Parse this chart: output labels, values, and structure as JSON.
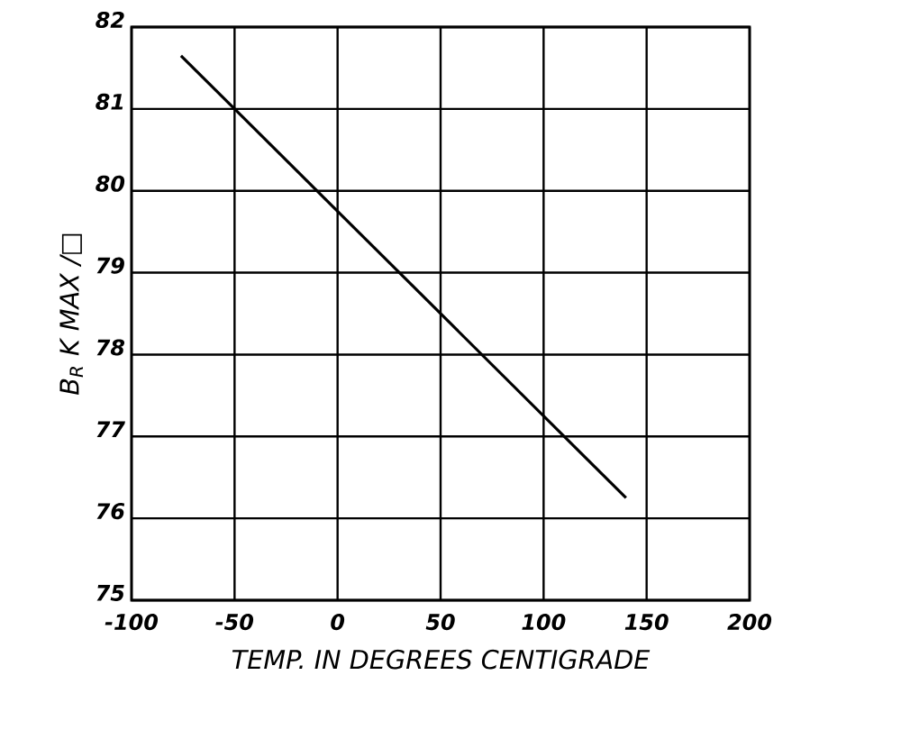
{
  "chart_data": {
    "type": "line",
    "xlabel": "TEMP. IN DEGREES CENTIGRADE",
    "ylabel": "B$_{R}$ K MAX /□",
    "x": [
      -76,
      140
    ],
    "series": [
      {
        "color": "#000000",
        "values": [
          81.65,
          76.25
        ]
      }
    ],
    "xlim": [
      -100,
      200
    ],
    "xticks": [
      -100,
      -50,
      0,
      50,
      100,
      150,
      200
    ],
    "ylim": [
      75,
      82
    ],
    "yticks": [
      75,
      76,
      77,
      78,
      79,
      80,
      81,
      82
    ],
    "grid": true,
    "marker": "none",
    "line_style": "solid"
  }
}
